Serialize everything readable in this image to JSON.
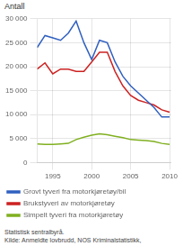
{
  "chart_data": {
    "type": "line",
    "ylabel": "Antall",
    "x": [
      1993,
      1994,
      1995,
      1996,
      1997,
      1998,
      1999,
      2000,
      2001,
      2002,
      2003,
      2004,
      2005,
      2006,
      2007,
      2008,
      2009,
      2010
    ],
    "series": [
      {
        "name": "Grovt tyveri fra motorkjøretøy/bil",
        "color": "#3060c0",
        "values": [
          24000,
          26500,
          26000,
          25500,
          27000,
          29500,
          25000,
          21500,
          25500,
          25000,
          21000,
          18000,
          16000,
          14500,
          13000,
          11500,
          9500,
          9500
        ]
      },
      {
        "name": "Brukstyveri av motorkjøretøy",
        "color": "#cc2222",
        "values": [
          19500,
          20800,
          18500,
          19500,
          19500,
          19000,
          19000,
          21000,
          23000,
          23000,
          19000,
          16000,
          14000,
          13000,
          12500,
          12000,
          11000,
          10500
        ]
      },
      {
        "name": "Simpelt tyveri fra motorkjøretøy",
        "color": "#80b020",
        "values": [
          3900,
          3800,
          3800,
          3900,
          4000,
          4800,
          5300,
          5700,
          6000,
          5800,
          5500,
          5200,
          4800,
          4700,
          4600,
          4400,
          4000,
          3800
        ]
      }
    ],
    "xlim": [
      1993,
      2010.2
    ],
    "xticks": [
      1995,
      2000,
      2005,
      2010
    ],
    "ylim": [
      0,
      30000
    ],
    "yticks": [
      0,
      {
        "value": 5000,
        "label": "5 000"
      },
      {
        "value": 10000,
        "label": "10 000"
      },
      {
        "value": 15000,
        "label": "15 000"
      },
      {
        "value": 20000,
        "label": "20 000"
      },
      {
        "value": 25000,
        "label": "25 000"
      },
      {
        "value": 30000,
        "label": "30 000"
      }
    ],
    "grid": true,
    "legend": "bottom",
    "annotations": [
      "Statistisk sentralbyrå.",
      "Kilde: Anmeldte lovbrudd, NOS Kriminalstatistikk,"
    ]
  }
}
